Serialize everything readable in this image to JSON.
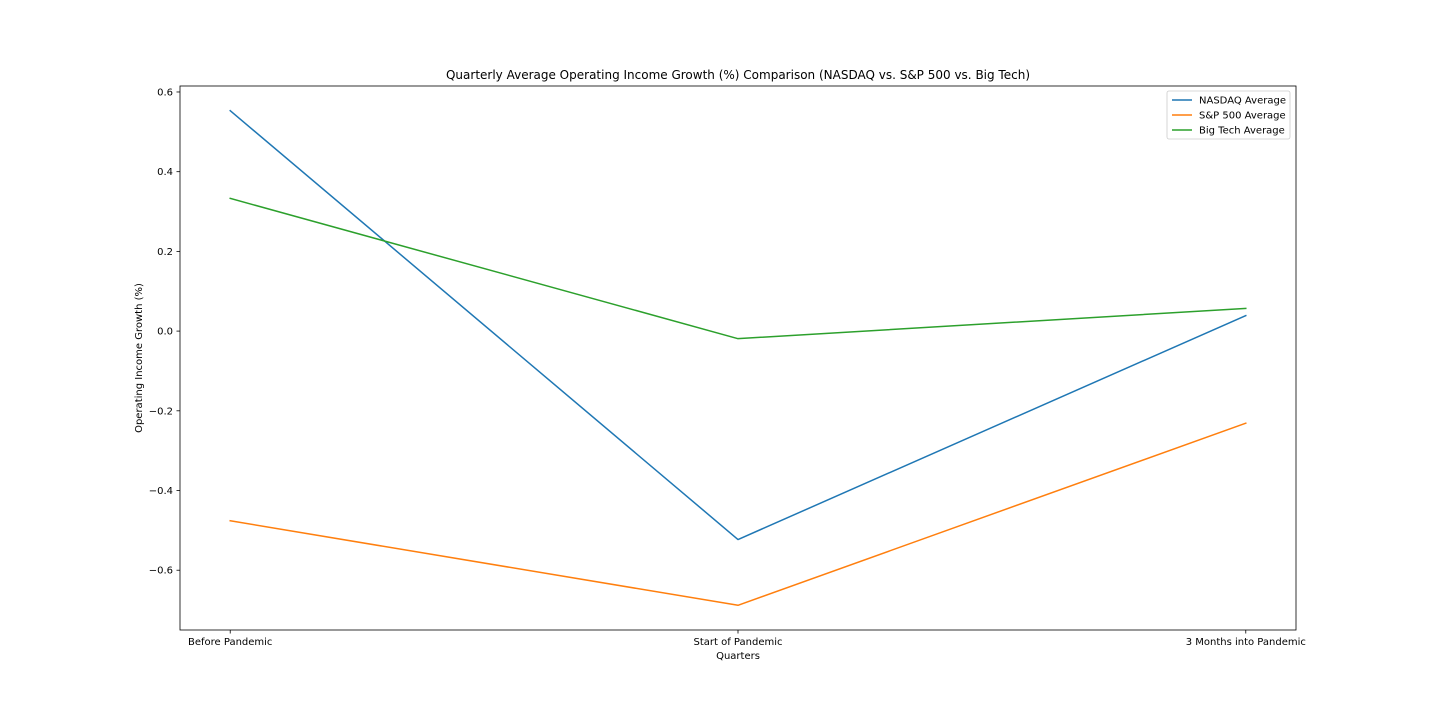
{
  "chart_data": {
    "type": "line",
    "title": "Quarterly Average Operating Income Growth (%) Comparison (NASDAQ vs. S&P 500 vs. Big Tech)",
    "xlabel": "Quarters",
    "ylabel": "Operating Income Growth (%)",
    "categories": [
      "Before Pandemic",
      "Start of Pandemic",
      "3 Months into Pandemic"
    ],
    "ylim": [
      -0.75,
      0.615
    ],
    "yticks": [
      0.6,
      0.4,
      0.2,
      0.0,
      -0.2,
      -0.4,
      -0.6
    ],
    "ytick_labels": [
      "0.6",
      "0.4",
      "0.2",
      "0.0",
      "−0.2",
      "−0.4",
      "−0.6"
    ],
    "grid": false,
    "legend_position": "top-right",
    "series": [
      {
        "name": "NASDAQ Average",
        "color": "#1f77b4",
        "values": [
          0.553,
          -0.523,
          0.039
        ]
      },
      {
        "name": "S&P 500 Average",
        "color": "#ff7f0e",
        "values": [
          -0.476,
          -0.688,
          -0.231
        ]
      },
      {
        "name": "Big Tech Average",
        "color": "#2ca02c",
        "values": [
          0.333,
          -0.019,
          0.057
        ]
      }
    ]
  }
}
